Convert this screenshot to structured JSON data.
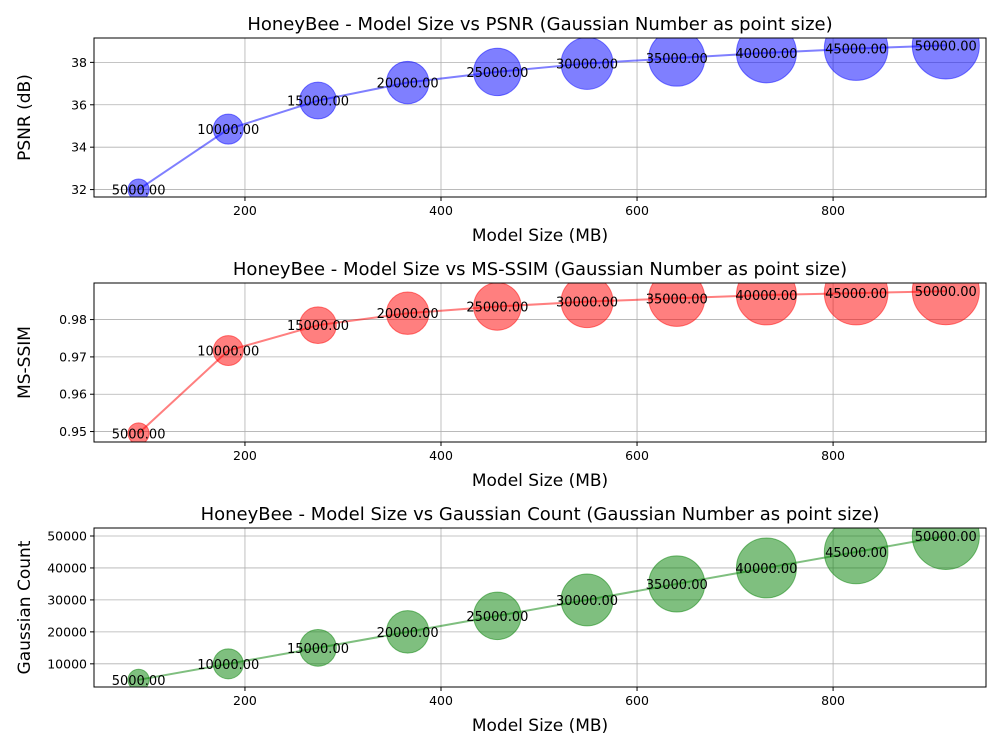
{
  "chart_data": [
    {
      "type": "scatter",
      "title": "HoneyBee - Model Size vs PSNR (Gaussian Number as point size)",
      "xlabel": "Model Size (MB)",
      "ylabel": "PSNR (dB)",
      "xlim": [
        46,
        956
      ],
      "ylim": [
        31.65,
        39.15
      ],
      "xticks": [
        200,
        400,
        600,
        800
      ],
      "yticks": [
        32,
        34,
        36,
        38
      ],
      "ytick_labels": [
        "32",
        "34",
        "36",
        "38"
      ],
      "grid": true,
      "color": "#0000ff",
      "series": [
        {
          "x": [
            91.5,
            183,
            274.5,
            366,
            457.5,
            549,
            640.5,
            732,
            823.5,
            915
          ],
          "y": [
            32.0,
            34.85,
            36.2,
            37.05,
            37.55,
            37.95,
            38.2,
            38.45,
            38.65,
            38.8
          ],
          "size": [
            5000,
            10000,
            15000,
            20000,
            25000,
            30000,
            35000,
            40000,
            45000,
            50000
          ],
          "labels": [
            "5000.00",
            "10000.00",
            "15000.00",
            "20000.00",
            "25000.00",
            "30000.00",
            "35000.00",
            "40000.00",
            "45000.00",
            "50000.00"
          ]
        }
      ]
    },
    {
      "type": "scatter",
      "title": "HoneyBee - Model Size vs MS-SSIM (Gaussian Number as point size)",
      "xlabel": "Model Size (MB)",
      "ylabel": "MS-SSIM",
      "xlim": [
        46,
        956
      ],
      "ylim": [
        0.9472,
        0.9898
      ],
      "xticks": [
        200,
        400,
        600,
        800
      ],
      "yticks": [
        0.95,
        0.96,
        0.97,
        0.98
      ],
      "ytick_labels": [
        "0.95",
        "0.96",
        "0.97",
        "0.98"
      ],
      "grid": true,
      "color": "#ff0000",
      "series": [
        {
          "x": [
            91.5,
            183,
            274.5,
            366,
            457.5,
            549,
            640.5,
            732,
            823.5,
            915
          ],
          "y": [
            0.9495,
            0.9717,
            0.9785,
            0.9817,
            0.9835,
            0.9848,
            0.9857,
            0.9866,
            0.9871,
            0.9876
          ],
          "size": [
            5000,
            10000,
            15000,
            20000,
            25000,
            30000,
            35000,
            40000,
            45000,
            50000
          ],
          "labels": [
            "5000.00",
            "10000.00",
            "15000.00",
            "20000.00",
            "25000.00",
            "30000.00",
            "35000.00",
            "40000.00",
            "45000.00",
            "50000.00"
          ]
        }
      ]
    },
    {
      "type": "scatter",
      "title": "HoneyBee - Model Size vs Gaussian Count (Gaussian Number as point size)",
      "xlabel": "Model Size (MB)",
      "ylabel": "Gaussian Count",
      "xlim": [
        46,
        956
      ],
      "ylim": [
        2750,
        52500
      ],
      "xticks": [
        200,
        400,
        600,
        800
      ],
      "yticks": [
        10000,
        20000,
        30000,
        40000,
        50000
      ],
      "ytick_labels": [
        "10000",
        "20000",
        "30000",
        "40000",
        "50000"
      ],
      "grid": true,
      "color": "#008000",
      "series": [
        {
          "x": [
            91.5,
            183,
            274.5,
            366,
            457.5,
            549,
            640.5,
            732,
            823.5,
            915
          ],
          "y": [
            5000,
            10000,
            15000,
            20000,
            25000,
            30000,
            35000,
            40000,
            45000,
            50000
          ],
          "size": [
            5000,
            10000,
            15000,
            20000,
            25000,
            30000,
            35000,
            40000,
            45000,
            50000
          ],
          "labels": [
            "5000.00",
            "10000.00",
            "15000.00",
            "20000.00",
            "25000.00",
            "30000.00",
            "35000.00",
            "40000.00",
            "45000.00",
            "50000.00"
          ]
        }
      ]
    }
  ]
}
